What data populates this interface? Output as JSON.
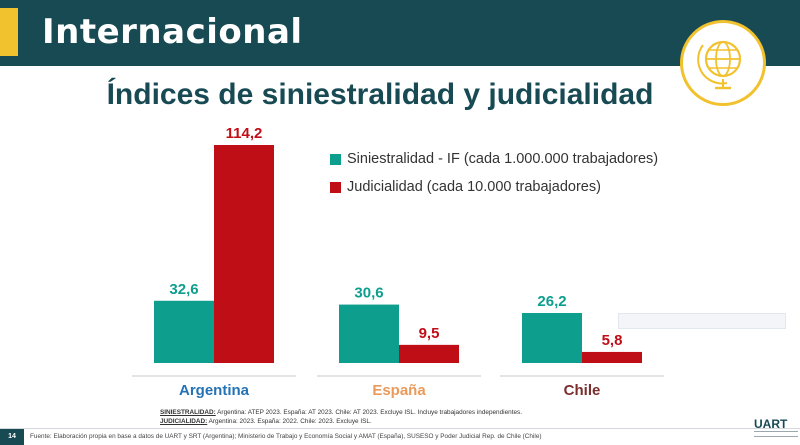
{
  "header": {
    "title": "Internacional"
  },
  "subtitle": "Índices de siniestralidad y judicialidad",
  "legend": {
    "items": [
      {
        "label": "Siniestralidad - IF (cada 1.000.000 trabajadores)",
        "color": "#0e9e8e"
      },
      {
        "label": "Judicialidad (cada 10.000 trabajadores)",
        "color": "#c00e17"
      }
    ]
  },
  "chart_data": {
    "type": "bar",
    "title": "Índices de siniestralidad y judicialidad",
    "categories": [
      "Argentina",
      "España",
      "Chile"
    ],
    "category_colors": [
      "#2573b5",
      "#ea9a5a",
      "#7a2e2e"
    ],
    "series": [
      {
        "name": "Siniestralidad - IF (cada 1.000.000 trabajadores)",
        "values": [
          32.6,
          30.6,
          26.2
        ],
        "labels": [
          "32,6",
          "30,6",
          "26,2"
        ],
        "color": "#0e9e8e"
      },
      {
        "name": "Judicialidad (cada 10.000 trabajadores)",
        "values": [
          114.2,
          9.5,
          5.8
        ],
        "labels": [
          "114,2",
          "9,5",
          "5,8"
        ],
        "color": "#c00e17"
      }
    ],
    "xlabel": "",
    "ylabel": "",
    "ylim": [
      0,
      114.2
    ],
    "grid": false,
    "legend_position": "top-right"
  },
  "notes": {
    "siniestralidad_label": "SINIESTRALIDAD:",
    "siniestralidad_text": " Argentina: ATEP 2023. España: AT 2023. Chile: AT 2023. Excluye ISL. Incluye trabajadores independientes.",
    "judicialidad_label": "JUDICIALIDAD:",
    "judicialidad_text": " Argentina: 2023. España: 2022. Chile: 2023. Excluye ISL."
  },
  "footer": {
    "page_number": "14",
    "source": "Fuente: Elaboración propia en base a datos de UART y SRT (Argentina); Ministerio de Trabajo y Economía Social y AMAT (España), SUSESO y Poder Judicial Rep. de Chile (Chile)",
    "brand": "UART"
  }
}
